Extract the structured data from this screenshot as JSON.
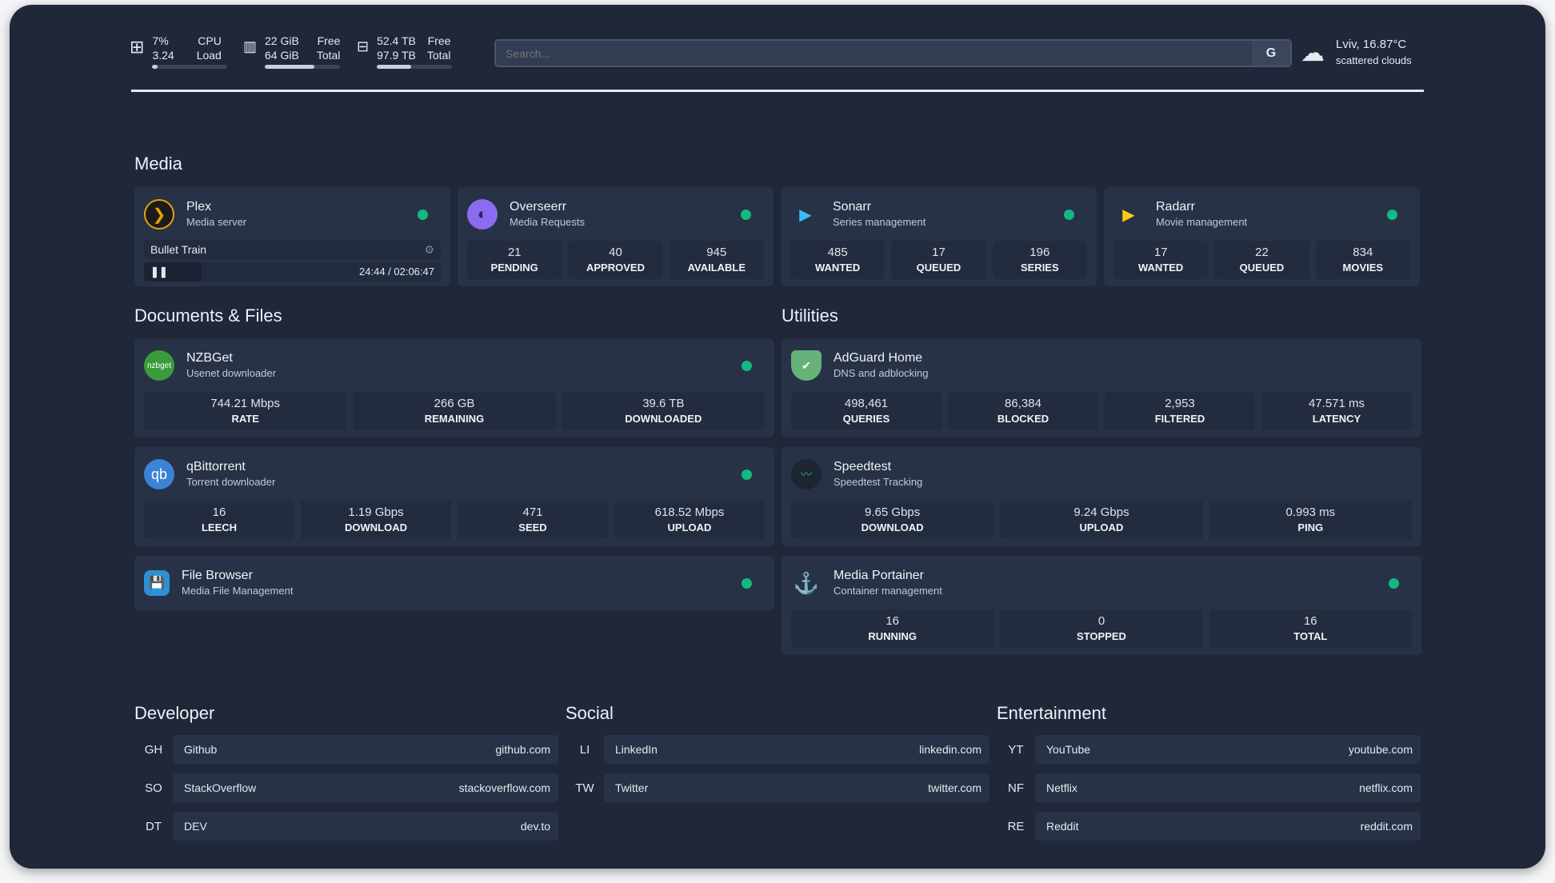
{
  "top": {
    "cpu": {
      "icon": "cpu-icon",
      "v1": "7%",
      "l1": "CPU",
      "v2": "3.24",
      "l2": "Load",
      "fill": 0.07
    },
    "mem": {
      "icon": "memory-icon",
      "v1": "22 GiB",
      "l1": "Free",
      "v2": "64 GiB",
      "l2": "Total",
      "fill": 0.66
    },
    "disk": {
      "icon": "disk-icon",
      "v1": "52.4 TB",
      "l1": "Free",
      "v2": "97.9 TB",
      "l2": "Total",
      "fill": 0.46
    },
    "search": {
      "placeholder": "Search...",
      "engine": "G"
    },
    "weather": {
      "icon": "cloud-icon",
      "line1": "Lviv, 16.87°C",
      "line2": "scattered clouds"
    }
  },
  "sections": {
    "media": "Media",
    "docs": "Documents & Files",
    "utilities": "Utilities",
    "developer": "Developer",
    "social": "Social",
    "entertainment": "Entertainment"
  },
  "media": [
    {
      "name": "Plex",
      "desc": "Media server",
      "icon": "plex-icon",
      "playing": {
        "title": "Bullet Train",
        "time": "24:44 / 02:06:47",
        "progress": 0.195
      }
    },
    {
      "name": "Overseerr",
      "desc": "Media Requests",
      "icon": "overseerr-icon",
      "stats": [
        {
          "v": "21",
          "l": "PENDING"
        },
        {
          "v": "40",
          "l": "APPROVED"
        },
        {
          "v": "945",
          "l": "AVAILABLE"
        }
      ]
    },
    {
      "name": "Sonarr",
      "desc": "Series management",
      "icon": "sonarr-icon",
      "stats": [
        {
          "v": "485",
          "l": "WANTED"
        },
        {
          "v": "17",
          "l": "QUEUED"
        },
        {
          "v": "196",
          "l": "SERIES"
        }
      ]
    },
    {
      "name": "Radarr",
      "desc": "Movie management",
      "icon": "radarr-icon",
      "stats": [
        {
          "v": "17",
          "l": "WANTED"
        },
        {
          "v": "22",
          "l": "QUEUED"
        },
        {
          "v": "834",
          "l": "MOVIES"
        }
      ]
    }
  ],
  "docs": [
    {
      "name": "NZBGet",
      "desc": "Usenet downloader",
      "icon_text": "nzbget",
      "stats": [
        {
          "v": "744.21 Mbps",
          "l": "RATE"
        },
        {
          "v": "266 GB",
          "l": "REMAINING"
        },
        {
          "v": "39.6 TB",
          "l": "DOWNLOADED"
        }
      ]
    },
    {
      "name": "qBittorrent",
      "desc": "Torrent downloader",
      "icon_text": "qb",
      "stats": [
        {
          "v": "16",
          "l": "LEECH"
        },
        {
          "v": "1.19 Gbps",
          "l": "DOWNLOAD"
        },
        {
          "v": "471",
          "l": "SEED"
        },
        {
          "v": "618.52 Mbps",
          "l": "UPLOAD"
        }
      ]
    },
    {
      "name": "File Browser",
      "desc": "Media File Management"
    }
  ],
  "utilities": [
    {
      "name": "AdGuard Home",
      "desc": "DNS and adblocking",
      "stats": [
        {
          "v": "498,461",
          "l": "QUERIES"
        },
        {
          "v": "86,384",
          "l": "BLOCKED"
        },
        {
          "v": "2,953",
          "l": "FILTERED"
        },
        {
          "v": "47.571 ms",
          "l": "LATENCY"
        }
      ]
    },
    {
      "name": "Speedtest",
      "desc": "Speedtest Tracking",
      "stats": [
        {
          "v": "9.65 Gbps",
          "l": "DOWNLOAD"
        },
        {
          "v": "9.24 Gbps",
          "l": "UPLOAD"
        },
        {
          "v": "0.993 ms",
          "l": "PING"
        }
      ]
    },
    {
      "name": "Media Portainer",
      "desc": "Container management",
      "stats": [
        {
          "v": "16",
          "l": "RUNNING"
        },
        {
          "v": "0",
          "l": "STOPPED"
        },
        {
          "v": "16",
          "l": "TOTAL"
        }
      ]
    }
  ],
  "bookmarks": {
    "developer": [
      {
        "ab": "GH",
        "name": "Github",
        "url": "github.com"
      },
      {
        "ab": "SO",
        "name": "StackOverflow",
        "url": "stackoverflow.com"
      },
      {
        "ab": "DT",
        "name": "DEV",
        "url": "dev.to"
      }
    ],
    "social": [
      {
        "ab": "LI",
        "name": "LinkedIn",
        "url": "linkedin.com"
      },
      {
        "ab": "TW",
        "name": "Twitter",
        "url": "twitter.com"
      }
    ],
    "entertainment": [
      {
        "ab": "YT",
        "name": "YouTube",
        "url": "youtube.com"
      },
      {
        "ab": "NF",
        "name": "Netflix",
        "url": "netflix.com"
      },
      {
        "ab": "RE",
        "name": "Reddit",
        "url": "reddit.com"
      }
    ]
  },
  "colors": {
    "bg": "#1f2739",
    "card": "#283246",
    "status": "#12b981"
  }
}
